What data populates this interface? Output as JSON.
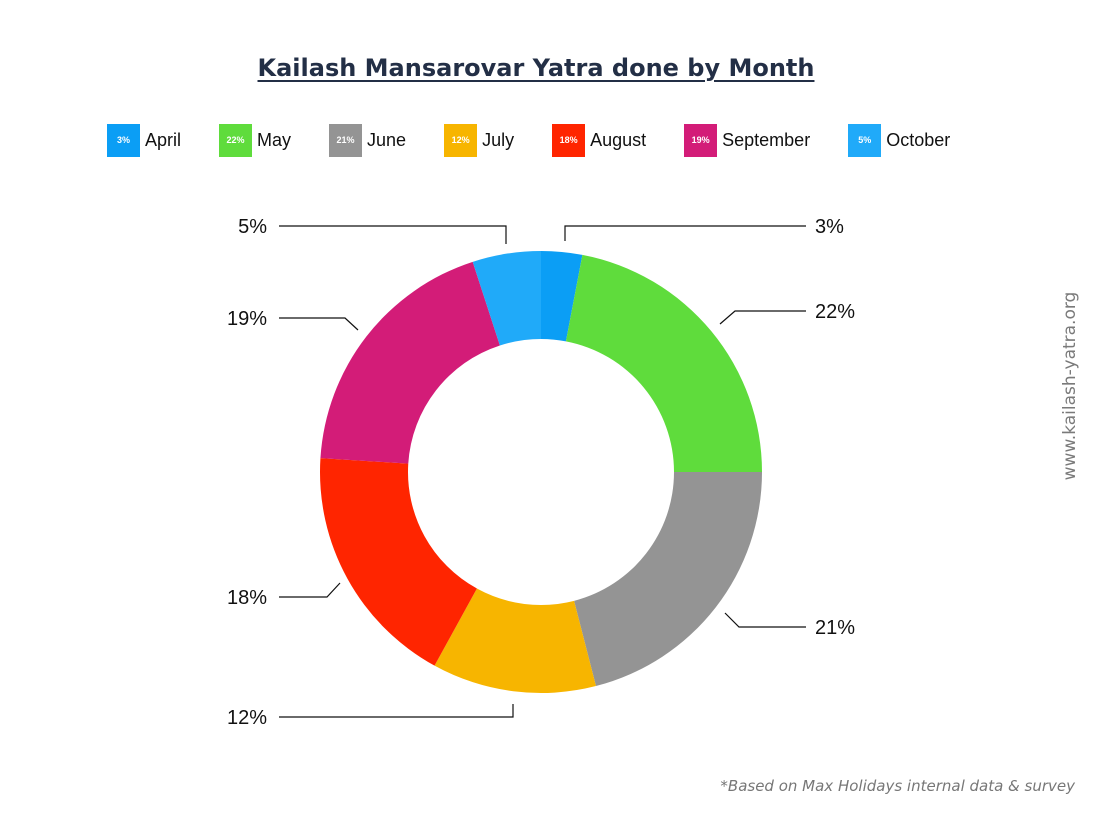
{
  "chart_data": {
    "type": "pie",
    "variant": "donut",
    "title": "Kailash Mansarovar Yatra done by Month",
    "categories": [
      "April",
      "May",
      "June",
      "July",
      "August",
      "September",
      "October"
    ],
    "values": [
      3,
      22,
      21,
      12,
      18,
      19,
      5
    ],
    "value_labels": [
      "3%",
      "22%",
      "21%",
      "12%",
      "18%",
      "19%",
      "5%"
    ],
    "colors": [
      "#0b9ef5",
      "#5fdc3c",
      "#949494",
      "#f7b500",
      "#ff2500",
      "#d31c78",
      "#20aaf9"
    ],
    "legend_position": "top"
  },
  "watermark": "www.kailash-yatra.org",
  "footnote": "*Based on Max Holidays internal data & survey"
}
